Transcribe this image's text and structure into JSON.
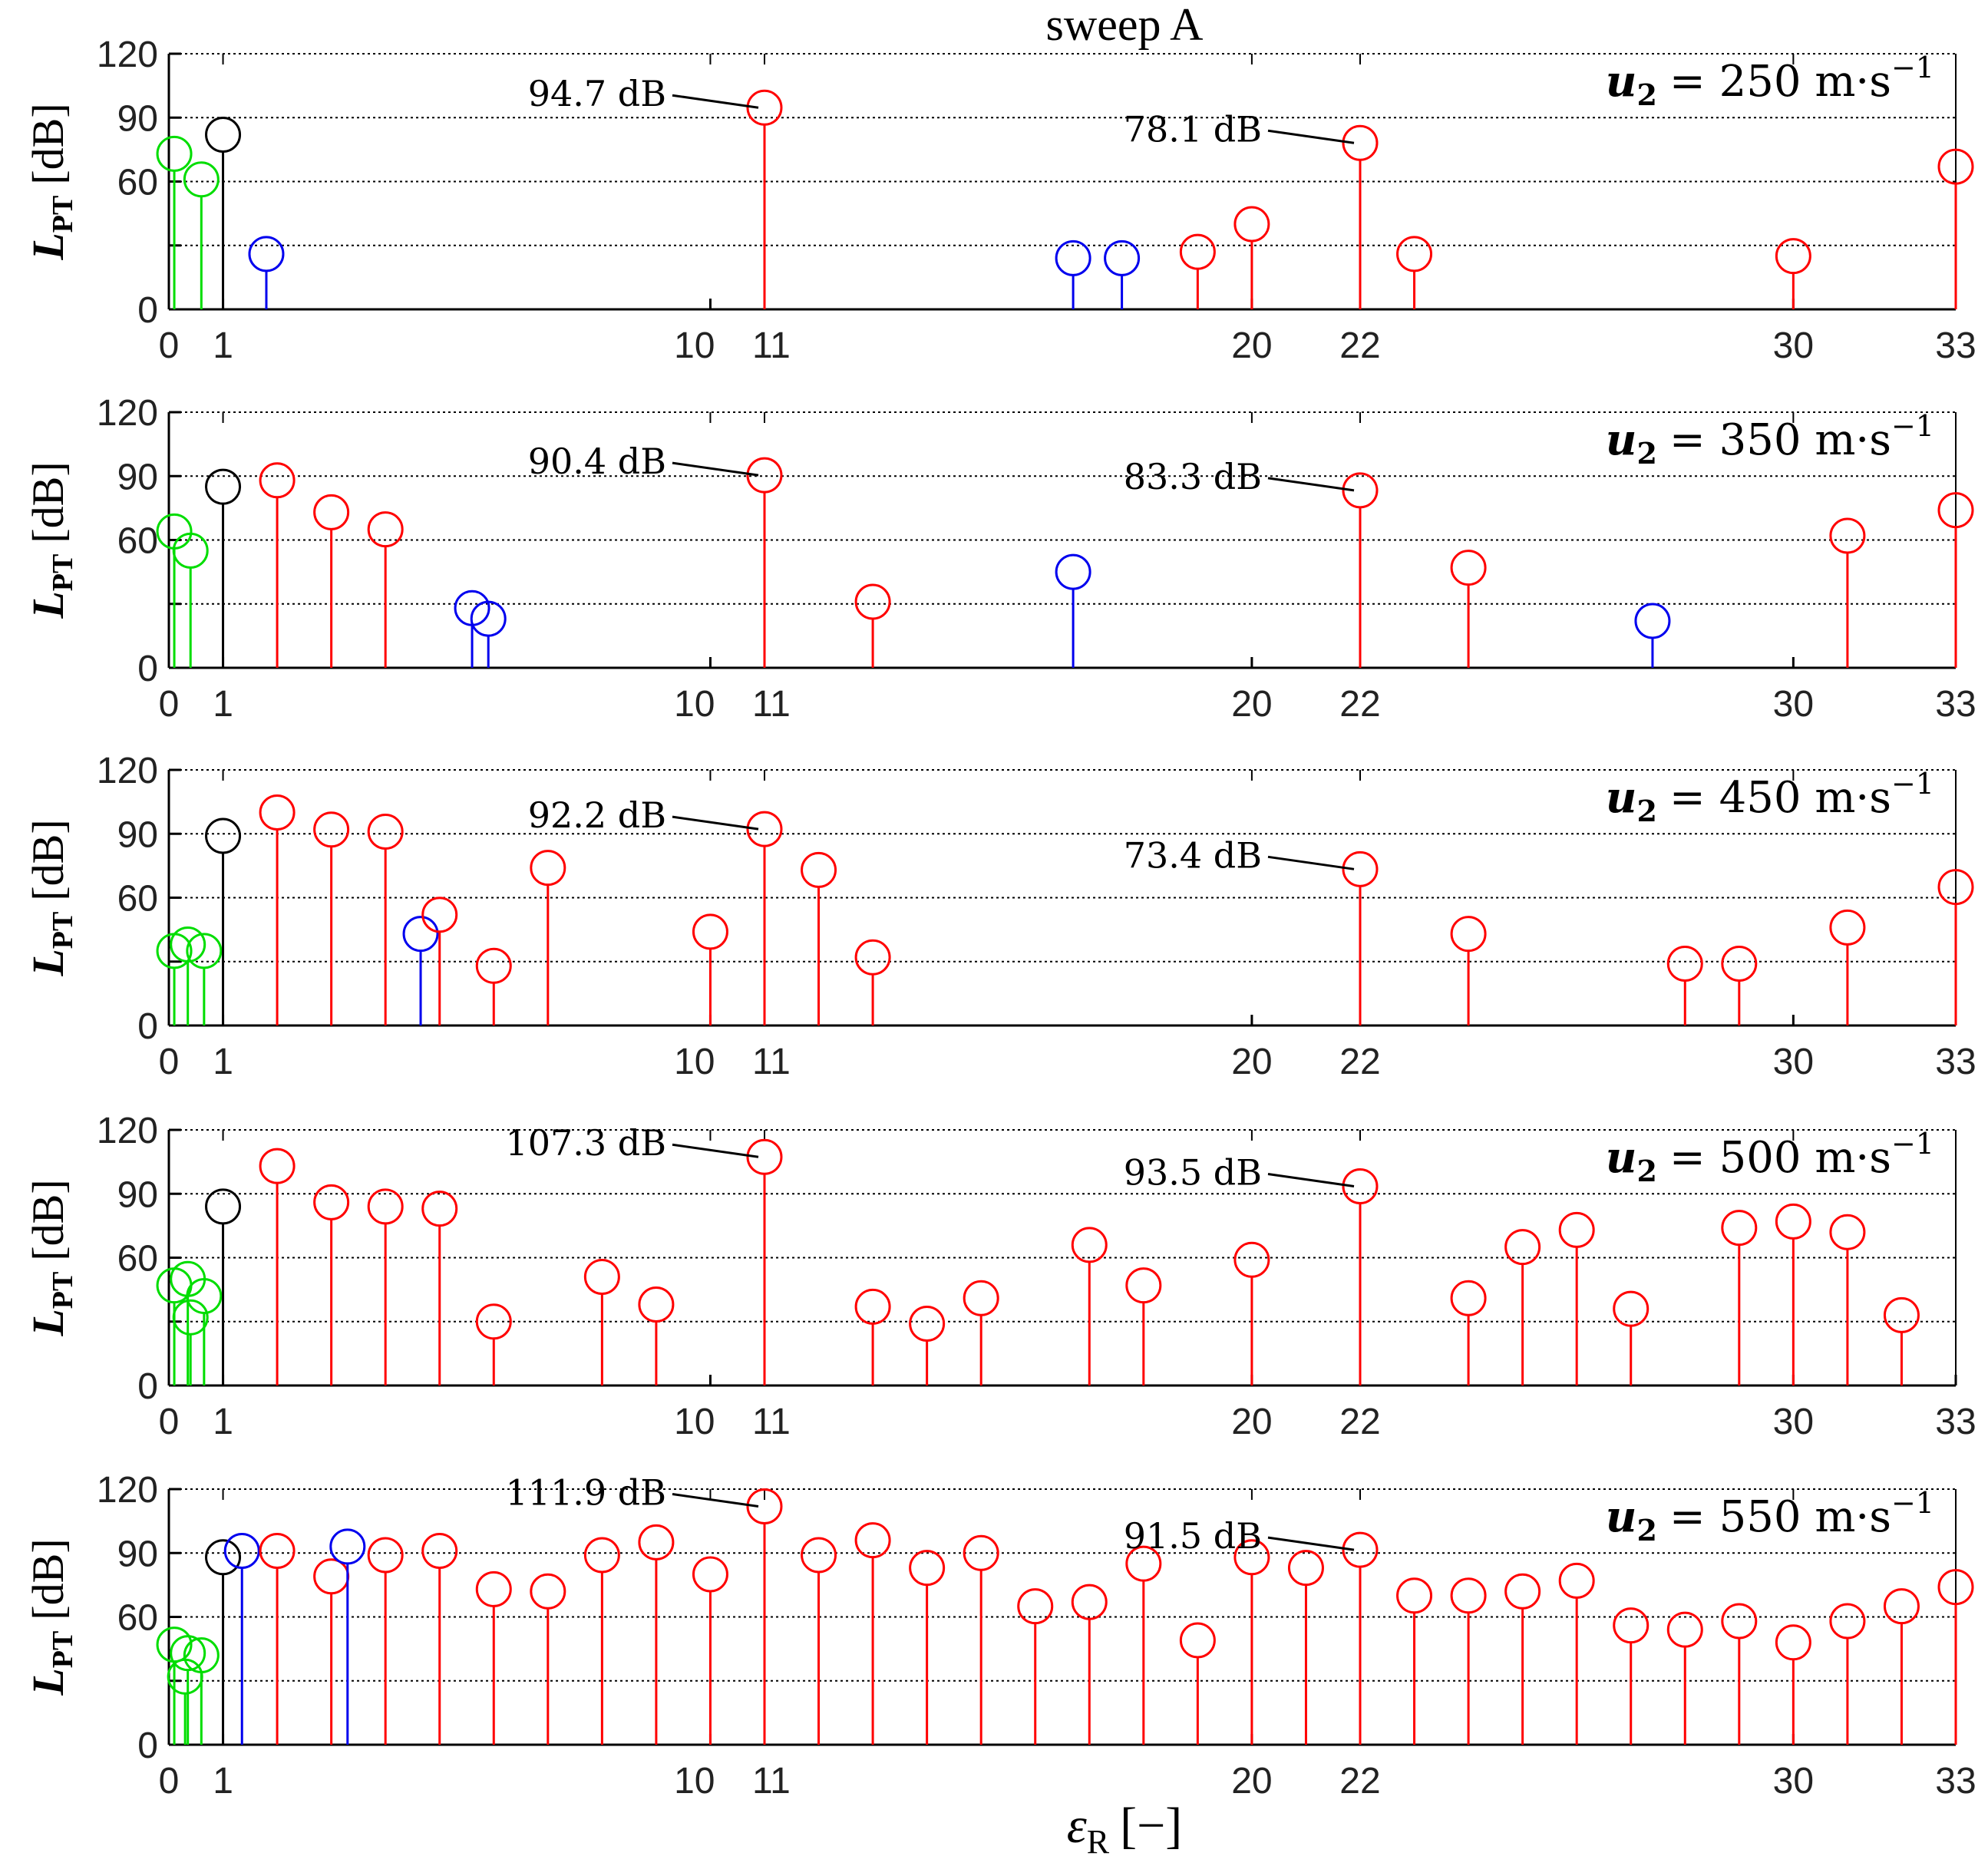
{
  "chart_data": {
    "type": "stem",
    "title": "sweep A",
    "xlabel": "ε_R [−]",
    "ylabel": "L_PT [dB]",
    "ylabel_main": "L",
    "ylabel_sub": "PT",
    "ylabel_unit": "[dB]",
    "xlabel_main": "ε",
    "xlabel_sub": "R",
    "xlabel_unit": "[−]",
    "xlim": [
      0,
      33
    ],
    "ylim": [
      0,
      120
    ],
    "yticks": [
      0,
      30,
      60,
      90,
      120
    ],
    "ytick_labels": [
      "0",
      "",
      "60",
      "90",
      "120"
    ],
    "xticks": [
      0,
      1,
      10,
      11,
      20,
      22,
      30,
      33
    ],
    "xtick_labels": [
      "0",
      "1",
      "10",
      "11",
      "20",
      "22",
      "30",
      "33"
    ],
    "grid_lines": [
      30,
      60,
      90,
      120
    ],
    "colors": {
      "green": "#00dd00",
      "black": "#000000",
      "blue": "#0000ee",
      "red": "#ff0000",
      "grid": "#000000"
    },
    "panels": [
      {
        "speed_label_var": "u",
        "speed_label_sub": "2",
        "speed_label_value": "= 250 m·s",
        "speed_label_exp": "−1",
        "stems": [
          {
            "x": 0.1,
            "y": 73,
            "color": "green"
          },
          {
            "x": 0.6,
            "y": 61,
            "color": "green"
          },
          {
            "x": 1,
            "y": 82,
            "color": "black"
          },
          {
            "x": 1.8,
            "y": 26,
            "color": "blue"
          },
          {
            "x": 16.7,
            "y": 24,
            "color": "blue"
          },
          {
            "x": 17.6,
            "y": 24,
            "color": "blue"
          },
          {
            "x": 19,
            "y": 27,
            "color": "red"
          },
          {
            "x": 20,
            "y": 40,
            "color": "red"
          },
          {
            "x": 22,
            "y": 78.1,
            "color": "red"
          },
          {
            "x": 23,
            "y": 26,
            "color": "red"
          },
          {
            "x": 30,
            "y": 25,
            "color": "red"
          },
          {
            "x": 11,
            "y": 94.7,
            "color": "red"
          },
          {
            "x": 33,
            "y": 67,
            "color": "red"
          }
        ],
        "annotations": [
          {
            "x": 11,
            "y": 94.7,
            "text": "94.7 dB"
          },
          {
            "x": 22,
            "y": 78.1,
            "text": "78.1 dB"
          }
        ]
      },
      {
        "speed_label_var": "u",
        "speed_label_sub": "2",
        "speed_label_value": "= 350 m·s",
        "speed_label_exp": "−1",
        "stems": [
          {
            "x": 0.1,
            "y": 64,
            "color": "green"
          },
          {
            "x": 0.4,
            "y": 55,
            "color": "green"
          },
          {
            "x": 1,
            "y": 85,
            "color": "black"
          },
          {
            "x": 2,
            "y": 88,
            "color": "red"
          },
          {
            "x": 3,
            "y": 73,
            "color": "red"
          },
          {
            "x": 4,
            "y": 65,
            "color": "red"
          },
          {
            "x": 5.6,
            "y": 28,
            "color": "blue"
          },
          {
            "x": 5.9,
            "y": 23,
            "color": "blue"
          },
          {
            "x": 11,
            "y": 90.4,
            "color": "red"
          },
          {
            "x": 13,
            "y": 31,
            "color": "red"
          },
          {
            "x": 16.7,
            "y": 45,
            "color": "blue"
          },
          {
            "x": 22,
            "y": 83.3,
            "color": "red"
          },
          {
            "x": 24,
            "y": 47,
            "color": "red"
          },
          {
            "x": 27.4,
            "y": 22,
            "color": "blue"
          },
          {
            "x": 31,
            "y": 62,
            "color": "red"
          },
          {
            "x": 33,
            "y": 74,
            "color": "red"
          }
        ],
        "annotations": [
          {
            "x": 11,
            "y": 90.4,
            "text": "90.4 dB"
          },
          {
            "x": 22,
            "y": 83.3,
            "text": "83.3 dB"
          }
        ]
      },
      {
        "speed_label_var": "u",
        "speed_label_sub": "2",
        "speed_label_value": "= 450 m·s",
        "speed_label_exp": "−1",
        "stems": [
          {
            "x": 0.1,
            "y": 35,
            "color": "green"
          },
          {
            "x": 0.35,
            "y": 38,
            "color": "green"
          },
          {
            "x": 0.65,
            "y": 35,
            "color": "green"
          },
          {
            "x": 1,
            "y": 89,
            "color": "black"
          },
          {
            "x": 2,
            "y": 100,
            "color": "red"
          },
          {
            "x": 3,
            "y": 92,
            "color": "red"
          },
          {
            "x": 4,
            "y": 91,
            "color": "red"
          },
          {
            "x": 4.65,
            "y": 43,
            "color": "blue"
          },
          {
            "x": 5,
            "y": 52,
            "color": "red"
          },
          {
            "x": 6,
            "y": 28,
            "color": "red"
          },
          {
            "x": 7,
            "y": 74,
            "color": "red"
          },
          {
            "x": 10,
            "y": 44,
            "color": "red"
          },
          {
            "x": 11,
            "y": 92.2,
            "color": "red"
          },
          {
            "x": 12,
            "y": 73,
            "color": "red"
          },
          {
            "x": 13,
            "y": 32,
            "color": "red"
          },
          {
            "x": 22,
            "y": 73.4,
            "color": "red"
          },
          {
            "x": 24,
            "y": 43,
            "color": "red"
          },
          {
            "x": 28,
            "y": 29,
            "color": "red"
          },
          {
            "x": 29,
            "y": 29,
            "color": "red"
          },
          {
            "x": 31,
            "y": 46,
            "color": "red"
          },
          {
            "x": 33,
            "y": 65,
            "color": "red"
          }
        ],
        "annotations": [
          {
            "x": 11,
            "y": 92.2,
            "text": "92.2 dB"
          },
          {
            "x": 22,
            "y": 73.4,
            "text": "73.4 dB"
          }
        ]
      },
      {
        "speed_label_var": "u",
        "speed_label_sub": "2",
        "speed_label_value": "= 500 m·s",
        "speed_label_exp": "−1",
        "stems": [
          {
            "x": 0.1,
            "y": 47,
            "color": "green"
          },
          {
            "x": 0.35,
            "y": 50,
            "color": "green"
          },
          {
            "x": 0.65,
            "y": 42,
            "color": "green"
          },
          {
            "x": 0.4,
            "y": 32,
            "color": "green"
          },
          {
            "x": 1,
            "y": 84,
            "color": "black"
          },
          {
            "x": 2,
            "y": 103,
            "color": "red"
          },
          {
            "x": 3,
            "y": 86,
            "color": "red"
          },
          {
            "x": 4,
            "y": 84,
            "color": "red"
          },
          {
            "x": 5,
            "y": 83,
            "color": "red"
          },
          {
            "x": 6,
            "y": 30,
            "color": "red"
          },
          {
            "x": 8,
            "y": 51,
            "color": "red"
          },
          {
            "x": 9,
            "y": 38,
            "color": "red"
          },
          {
            "x": 11,
            "y": 107.3,
            "color": "red"
          },
          {
            "x": 13,
            "y": 37,
            "color": "red"
          },
          {
            "x": 14,
            "y": 29,
            "color": "red"
          },
          {
            "x": 15,
            "y": 41,
            "color": "red"
          },
          {
            "x": 17,
            "y": 66,
            "color": "red"
          },
          {
            "x": 18,
            "y": 47,
            "color": "red"
          },
          {
            "x": 20,
            "y": 59,
            "color": "red"
          },
          {
            "x": 22,
            "y": 93.5,
            "color": "red"
          },
          {
            "x": 24,
            "y": 41,
            "color": "red"
          },
          {
            "x": 25,
            "y": 65,
            "color": "red"
          },
          {
            "x": 26,
            "y": 73,
            "color": "red"
          },
          {
            "x": 27,
            "y": 36,
            "color": "red"
          },
          {
            "x": 29,
            "y": 74,
            "color": "red"
          },
          {
            "x": 30,
            "y": 77,
            "color": "red"
          },
          {
            "x": 31,
            "y": 72,
            "color": "red"
          },
          {
            "x": 32,
            "y": 33,
            "color": "red"
          }
        ],
        "annotations": [
          {
            "x": 11,
            "y": 107.3,
            "text": "107.3 dB"
          },
          {
            "x": 22,
            "y": 93.5,
            "text": "93.5 dB"
          }
        ]
      },
      {
        "speed_label_var": "u",
        "speed_label_sub": "2",
        "speed_label_value": "= 550 m·s",
        "speed_label_exp": "−1",
        "stems": [
          {
            "x": 0.1,
            "y": 47,
            "color": "green"
          },
          {
            "x": 0.35,
            "y": 43,
            "color": "green"
          },
          {
            "x": 0.6,
            "y": 42,
            "color": "green"
          },
          {
            "x": 0.3,
            "y": 32,
            "color": "green"
          },
          {
            "x": 1,
            "y": 88,
            "color": "black"
          },
          {
            "x": 1.35,
            "y": 91,
            "color": "blue"
          },
          {
            "x": 2,
            "y": 91,
            "color": "red"
          },
          {
            "x": 3,
            "y": 79,
            "color": "red"
          },
          {
            "x": 3.3,
            "y": 93,
            "color": "blue"
          },
          {
            "x": 4,
            "y": 89,
            "color": "red"
          },
          {
            "x": 5,
            "y": 91,
            "color": "red"
          },
          {
            "x": 6,
            "y": 73,
            "color": "red"
          },
          {
            "x": 7,
            "y": 72,
            "color": "red"
          },
          {
            "x": 8,
            "y": 89,
            "color": "red"
          },
          {
            "x": 9,
            "y": 95,
            "color": "red"
          },
          {
            "x": 10,
            "y": 80,
            "color": "red"
          },
          {
            "x": 11,
            "y": 111.9,
            "color": "red"
          },
          {
            "x": 12,
            "y": 89,
            "color": "red"
          },
          {
            "x": 13,
            "y": 96,
            "color": "red"
          },
          {
            "x": 14,
            "y": 83,
            "color": "red"
          },
          {
            "x": 15,
            "y": 90,
            "color": "red"
          },
          {
            "x": 16,
            "y": 65,
            "color": "red"
          },
          {
            "x": 17,
            "y": 67,
            "color": "red"
          },
          {
            "x": 18,
            "y": 85,
            "color": "red"
          },
          {
            "x": 19,
            "y": 49,
            "color": "red"
          },
          {
            "x": 20,
            "y": 88,
            "color": "red"
          },
          {
            "x": 21,
            "y": 83,
            "color": "red"
          },
          {
            "x": 22,
            "y": 91.5,
            "color": "red"
          },
          {
            "x": 23,
            "y": 70,
            "color": "red"
          },
          {
            "x": 24,
            "y": 70,
            "color": "red"
          },
          {
            "x": 25,
            "y": 72,
            "color": "red"
          },
          {
            "x": 26,
            "y": 77,
            "color": "red"
          },
          {
            "x": 27,
            "y": 56,
            "color": "red"
          },
          {
            "x": 28,
            "y": 54,
            "color": "red"
          },
          {
            "x": 29,
            "y": 58,
            "color": "red"
          },
          {
            "x": 30,
            "y": 48,
            "color": "red"
          },
          {
            "x": 31,
            "y": 58,
            "color": "red"
          },
          {
            "x": 32,
            "y": 65,
            "color": "red"
          },
          {
            "x": 33,
            "y": 74,
            "color": "red"
          }
        ],
        "annotations": [
          {
            "x": 11,
            "y": 111.9,
            "text": "111.9 dB"
          },
          {
            "x": 22,
            "y": 91.5,
            "text": "91.5 dB"
          }
        ]
      }
    ]
  }
}
